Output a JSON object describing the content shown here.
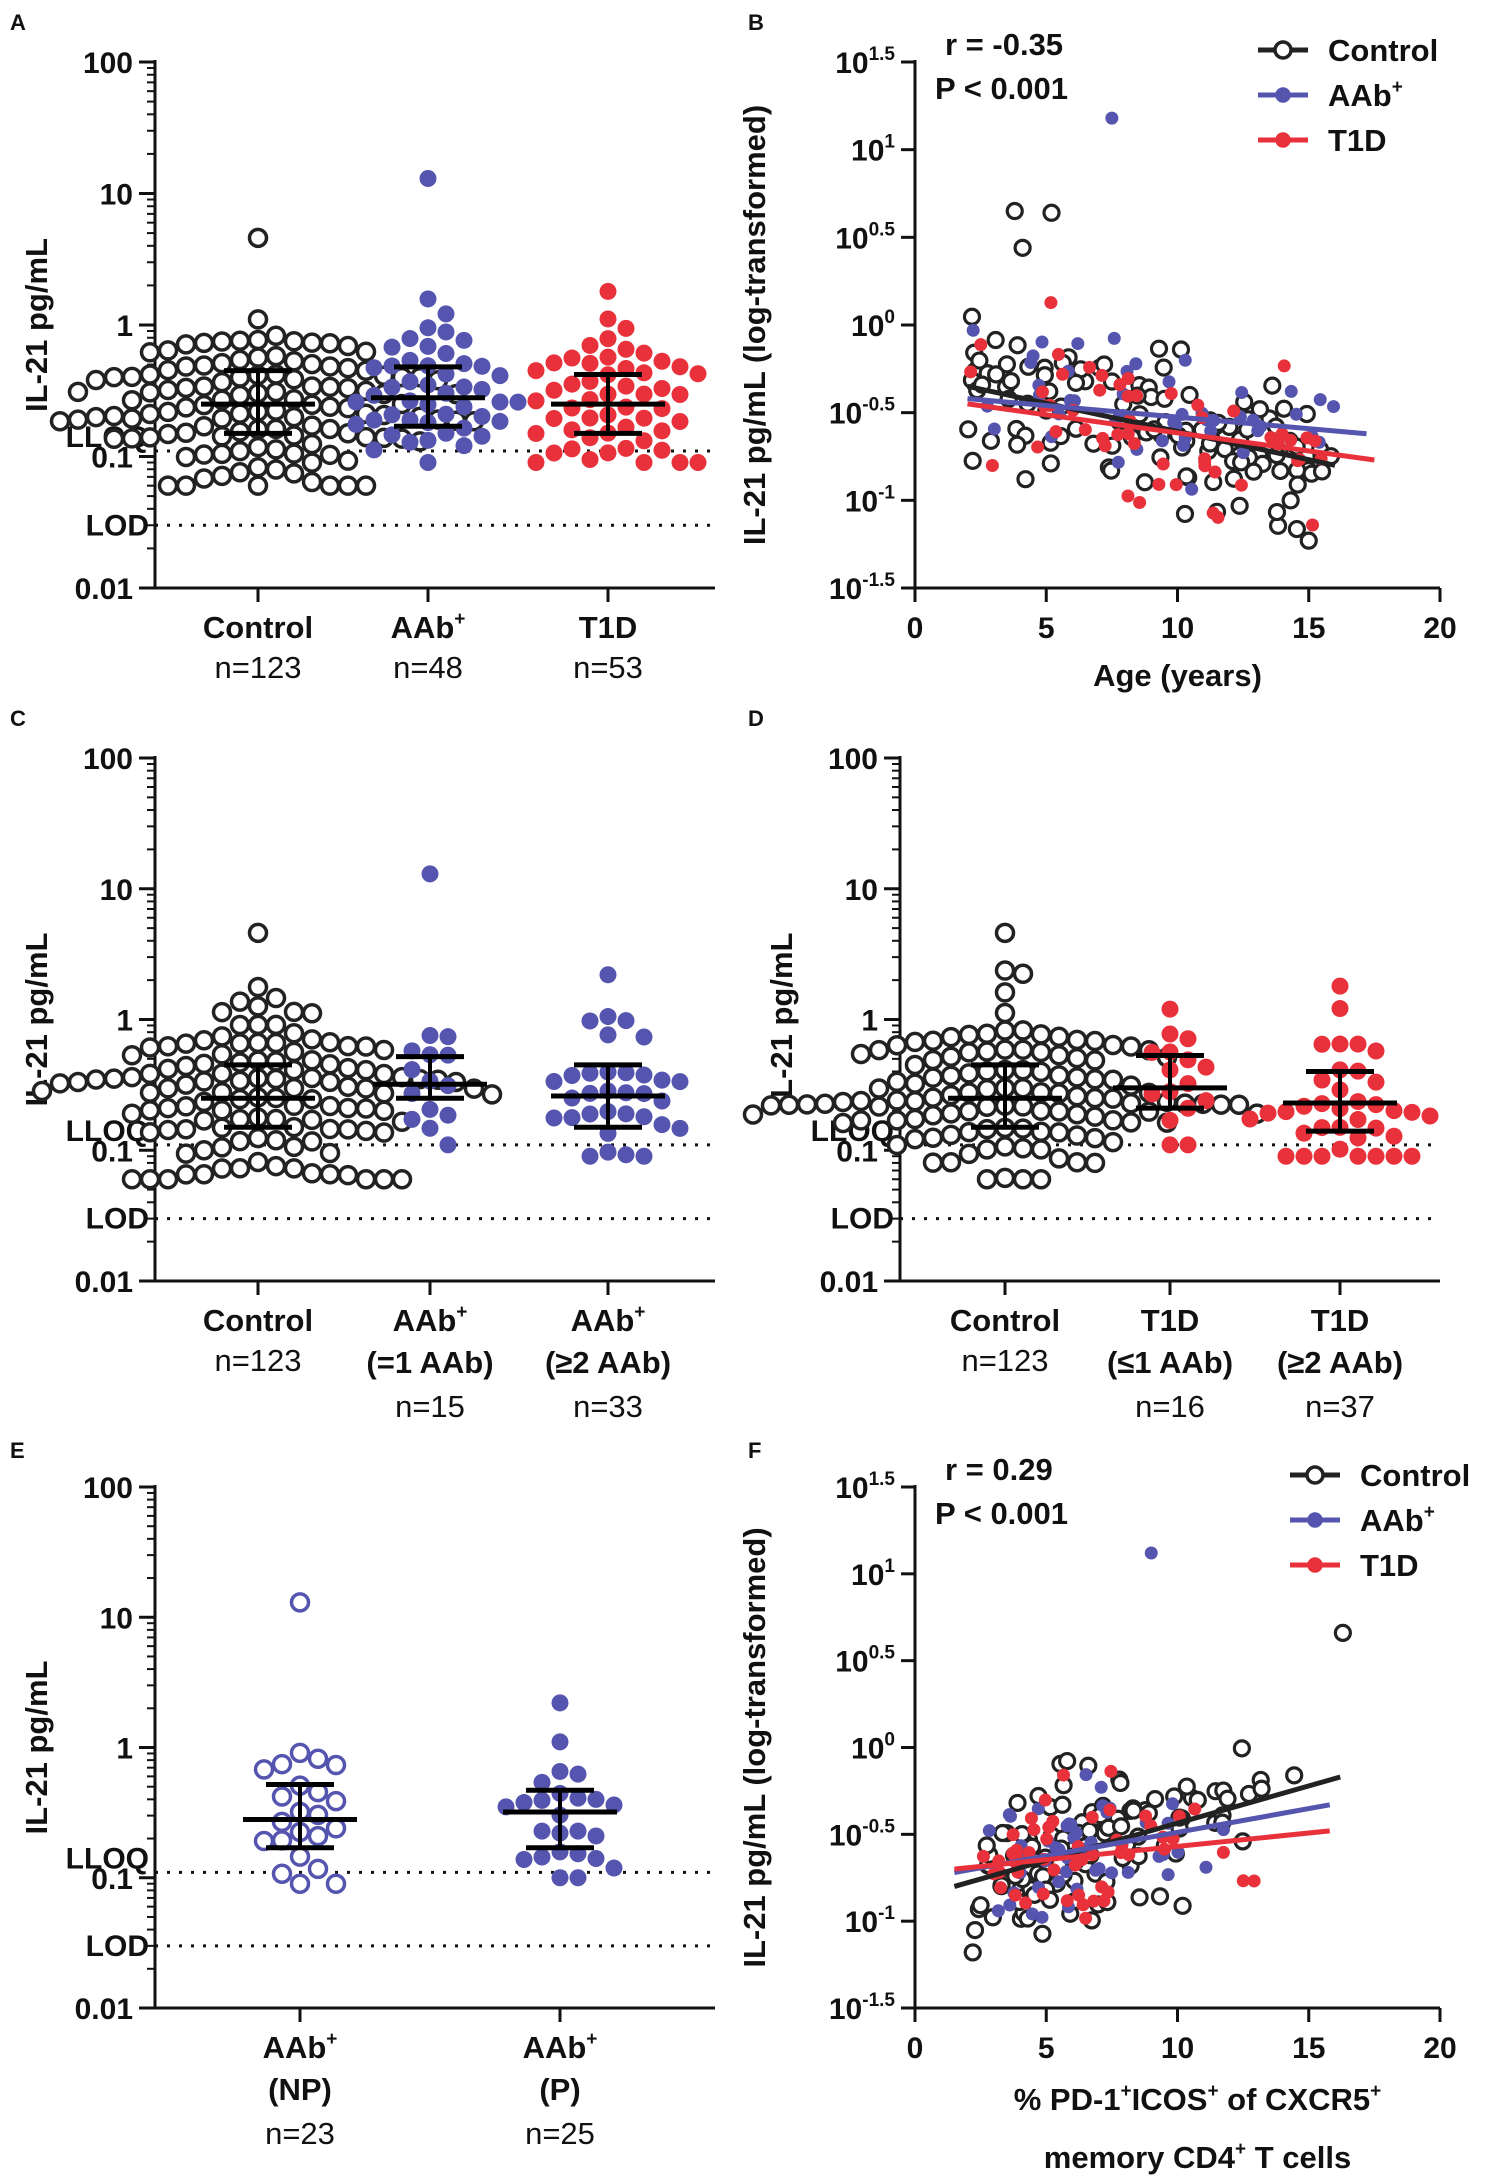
{
  "colors": {
    "control": "#222222",
    "aab": "#5555b0",
    "t1d": "#e8313a",
    "axis": "#111111"
  },
  "chart_data": [
    {
      "panel": "A",
      "type": "scatter",
      "subtype": "dot-plot-median-iqr",
      "ylabel": "IL-21 pg/mL",
      "yscale": "log",
      "ylim": [
        0.01,
        100
      ],
      "yticks": [
        "0.01",
        "0.1",
        "1",
        "10",
        "100"
      ],
      "reference_lines": [
        {
          "label": "LLOQ",
          "value": 0.11
        },
        {
          "label": "LOD",
          "value": 0.03
        }
      ],
      "groups": [
        {
          "label": "Control",
          "sup": "",
          "line2": "",
          "n": "n=123",
          "color": "control",
          "filled": false,
          "median": 0.25,
          "q1": 0.15,
          "q3": 0.45,
          "count": 123,
          "max": 4.6,
          "min": 0.06
        },
        {
          "label": "AAb",
          "sup": "+",
          "line2": "",
          "n": "n=48",
          "color": "aab",
          "filled": true,
          "median": 0.28,
          "q1": 0.17,
          "q3": 0.48,
          "count": 48,
          "max": 13,
          "min": 0.09
        },
        {
          "label": "T1D",
          "sup": "",
          "line2": "",
          "n": "n=53",
          "color": "t1d",
          "filled": true,
          "median": 0.25,
          "q1": 0.15,
          "q3": 0.42,
          "count": 53,
          "max": 1.8,
          "min": 0.09
        }
      ]
    },
    {
      "panel": "B",
      "type": "scatter",
      "subtype": "correlation",
      "xlabel": "Age (years)",
      "ylabel": "IL-21 pg/mL (log-transformed)",
      "xlim": [
        0,
        20
      ],
      "xticks": [
        "0",
        "5",
        "10",
        "15",
        "20"
      ],
      "ylim": [
        -1.5,
        1.5
      ],
      "yticks": [
        {
          "base": "10",
          "exp": "-1.5"
        },
        {
          "base": "10",
          "exp": "-1"
        },
        {
          "base": "10",
          "exp": "-0.5"
        },
        {
          "base": "10",
          "exp": "0"
        },
        {
          "base": "10",
          "exp": "0.5"
        },
        {
          "base": "10",
          "exp": "1"
        },
        {
          "base": "10",
          "exp": "1.5"
        }
      ],
      "stat_r": "r = -0.35",
      "stat_p": "P < 0.001",
      "legend": [
        {
          "label": "Control",
          "sup": "",
          "color": "control"
        },
        {
          "label": "AAb",
          "sup": "+",
          "color": "aab"
        },
        {
          "label": "T1D",
          "sup": "",
          "color": "t1d"
        }
      ],
      "series": [
        {
          "name": "Control",
          "color": "control",
          "filled": false,
          "fit": [
            [
              2,
              -0.35
            ],
            [
              16,
              -0.8
            ]
          ],
          "extreme_points": [
            [
              3.8,
              0.65
            ],
            [
              5.2,
              0.64
            ],
            [
              4.1,
              0.44
            ],
            [
              15,
              -1.23
            ]
          ]
        },
        {
          "name": "AAb+",
          "color": "aab",
          "filled": true,
          "fit": [
            [
              2,
              -0.42
            ],
            [
              17.2,
              -0.62
            ]
          ],
          "extreme_points": [
            [
              7.5,
              1.18
            ]
          ]
        },
        {
          "name": "T1D",
          "color": "t1d",
          "filled": true,
          "fit": [
            [
              2,
              -0.45
            ],
            [
              17.5,
              -0.77
            ]
          ],
          "extreme_points": []
        }
      ]
    },
    {
      "panel": "C",
      "type": "scatter",
      "subtype": "dot-plot-median-iqr",
      "ylabel": "IL-21 pg/mL",
      "yscale": "log",
      "ylim": [
        0.01,
        100
      ],
      "yticks": [
        "0.01",
        "0.1",
        "1",
        "10",
        "100"
      ],
      "reference_lines": [
        {
          "label": "LLOQ",
          "value": 0.11
        },
        {
          "label": "LOD",
          "value": 0.03
        }
      ],
      "groups": [
        {
          "label": "Control",
          "sup": "",
          "line2": "",
          "n": "n=123",
          "color": "control",
          "filled": false,
          "median": 0.25,
          "q1": 0.15,
          "q3": 0.45,
          "count": 123,
          "max": 4.6,
          "min": 0.06
        },
        {
          "label": "AAb",
          "sup": "+",
          "line2": "(=1 AAb)",
          "n": "n=15",
          "color": "aab",
          "filled": true,
          "median": 0.32,
          "q1": 0.25,
          "q3": 0.52,
          "count": 15,
          "max": 13,
          "min": 0.11
        },
        {
          "label": "AAb",
          "sup": "+",
          "line2": "(≥2 AAb)",
          "n": "n=33",
          "color": "aab",
          "filled": true,
          "median": 0.26,
          "q1": 0.15,
          "q3": 0.45,
          "count": 33,
          "max": 2.2,
          "min": 0.09
        }
      ]
    },
    {
      "panel": "D",
      "type": "scatter",
      "subtype": "dot-plot-median-iqr",
      "ylabel": "IL-21 pg/mL",
      "yscale": "log",
      "ylim": [
        0.01,
        100
      ],
      "yticks": [
        "0.01",
        "0.1",
        "1",
        "10",
        "100"
      ],
      "reference_lines": [
        {
          "label": "LLOQ",
          "value": 0.11
        },
        {
          "label": "LOD",
          "value": 0.03
        }
      ],
      "groups": [
        {
          "label": "Control",
          "sup": "",
          "line2": "",
          "n": "n=123",
          "color": "control",
          "filled": false,
          "median": 0.25,
          "q1": 0.15,
          "q3": 0.45,
          "count": 123,
          "max": 4.6,
          "min": 0.06
        },
        {
          "label": "T1D",
          "sup": "",
          "line2": "(≤1 AAb)",
          "n": "n=16",
          "color": "t1d",
          "filled": true,
          "median": 0.3,
          "q1": 0.21,
          "q3": 0.53,
          "count": 16,
          "max": 1.2,
          "min": 0.11
        },
        {
          "label": "T1D",
          "sup": "",
          "line2": "(≥2 AAb)",
          "n": "n=37",
          "color": "t1d",
          "filled": true,
          "median": 0.23,
          "q1": 0.14,
          "q3": 0.4,
          "count": 37,
          "max": 1.8,
          "min": 0.09
        }
      ]
    },
    {
      "panel": "E",
      "type": "scatter",
      "subtype": "dot-plot-median-iqr",
      "ylabel": "IL-21 pg/mL",
      "yscale": "log",
      "ylim": [
        0.01,
        100
      ],
      "yticks": [
        "0.01",
        "0.1",
        "1",
        "10",
        "100"
      ],
      "reference_lines": [
        {
          "label": "LLOQ",
          "value": 0.11
        },
        {
          "label": "LOD",
          "value": 0.03
        }
      ],
      "groups": [
        {
          "label": "AAb",
          "sup": "+",
          "line2": "(NP)",
          "n": "n=23",
          "color": "aab",
          "filled": false,
          "median": 0.28,
          "q1": 0.17,
          "q3": 0.52,
          "count": 23,
          "max": 13,
          "min": 0.09
        },
        {
          "label": "AAb",
          "sup": "+",
          "line2": "(P)",
          "n": "n=25",
          "color": "aab",
          "filled": true,
          "median": 0.32,
          "q1": 0.17,
          "q3": 0.47,
          "count": 25,
          "max": 2.2,
          "min": 0.1
        }
      ]
    },
    {
      "panel": "F",
      "type": "scatter",
      "subtype": "correlation",
      "xlabel_line1_parts": [
        "% PD-1",
        "+",
        "ICOS",
        "+",
        " of CXCR5",
        "+"
      ],
      "xlabel_line2_parts": [
        "memory CD4",
        "+",
        " T cells"
      ],
      "ylabel": "IL-21 pg/mL (log-transformed)",
      "xlim": [
        0,
        20
      ],
      "xticks": [
        "0",
        "5",
        "10",
        "15",
        "20"
      ],
      "ylim": [
        -1.5,
        1.5
      ],
      "yticks": [
        {
          "base": "10",
          "exp": "-1.5"
        },
        {
          "base": "10",
          "exp": "-1"
        },
        {
          "base": "10",
          "exp": "-0.5"
        },
        {
          "base": "10",
          "exp": "0"
        },
        {
          "base": "10",
          "exp": "0.5"
        },
        {
          "base": "10",
          "exp": "1"
        },
        {
          "base": "10",
          "exp": "1.5"
        }
      ],
      "stat_r": "r = 0.29",
      "stat_p": "P < 0.001",
      "legend": [
        {
          "label": "Control",
          "sup": "",
          "color": "control"
        },
        {
          "label": "AAb",
          "sup": "+",
          "color": "aab"
        },
        {
          "label": "T1D",
          "sup": "",
          "color": "t1d"
        }
      ],
      "series": [
        {
          "name": "Control",
          "color": "control",
          "filled": false,
          "fit": [
            [
              1.5,
              -0.8
            ],
            [
              16.2,
              -0.17
            ]
          ],
          "extreme_points": [
            [
              16.3,
              0.66
            ],
            [
              2.2,
              -1.18
            ]
          ]
        },
        {
          "name": "AAb+",
          "color": "aab",
          "filled": true,
          "fit": [
            [
              1.5,
              -0.72
            ],
            [
              15.8,
              -0.33
            ]
          ],
          "extreme_points": [
            [
              9,
              1.12
            ]
          ]
        },
        {
          "name": "T1D",
          "color": "t1d",
          "filled": true,
          "fit": [
            [
              1.5,
              -0.7
            ],
            [
              15.8,
              -0.48
            ]
          ],
          "extreme_points": []
        }
      ]
    }
  ]
}
